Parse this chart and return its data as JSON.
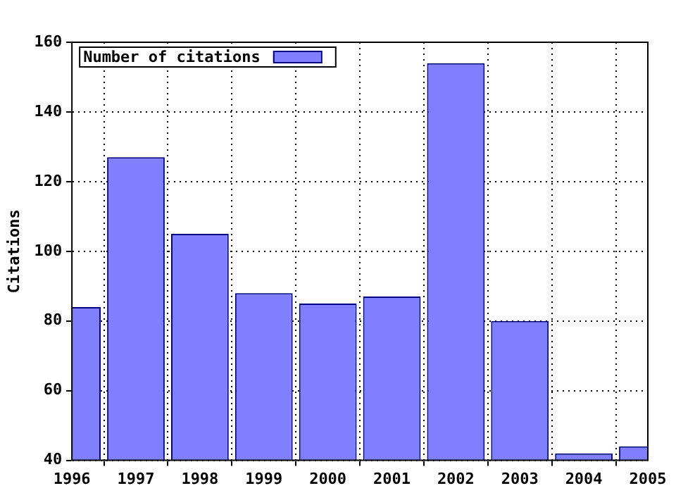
{
  "chart_data": {
    "type": "bar",
    "ylabel": "Citations",
    "x": [
      1996,
      1997,
      1998,
      1999,
      2000,
      2001,
      2002,
      2003,
      2004,
      2005
    ],
    "series": [
      {
        "name": "Number of citations",
        "color": "#8080ff",
        "values": [
          84,
          127,
          105,
          88,
          85,
          87,
          154,
          80,
          42,
          44
        ]
      }
    ],
    "xlim": [
      1996,
      2005
    ],
    "xticks": [
      1996,
      1997,
      1998,
      1999,
      2000,
      2001,
      2002,
      2003,
      2004,
      2005
    ],
    "ylim": [
      40,
      160
    ],
    "yticks": [
      40,
      60,
      80,
      100,
      120,
      140,
      160
    ],
    "grid": true,
    "legend": "top left"
  }
}
